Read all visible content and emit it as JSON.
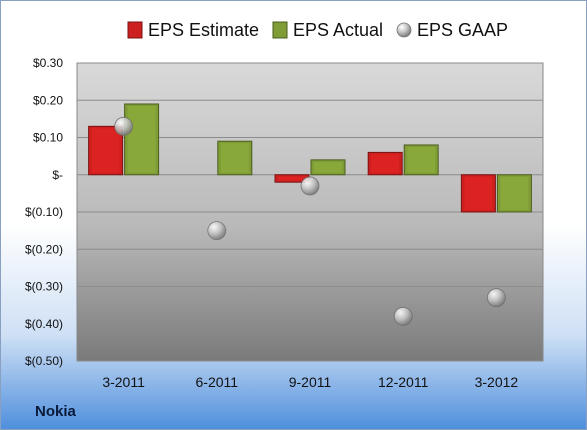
{
  "company": "Nokia",
  "chart_data": {
    "type": "bar",
    "categories": [
      "3-2011",
      "6-2011",
      "9-2011",
      "12-2011",
      "3-2012"
    ],
    "series": [
      {
        "name": "EPS Estimate",
        "kind": "bar",
        "color": "#cc1f1f",
        "values": [
          0.13,
          null,
          -0.02,
          0.06,
          -0.1
        ]
      },
      {
        "name": "EPS Actual",
        "kind": "bar",
        "color": "#7f9c36",
        "values": [
          0.19,
          0.09,
          0.04,
          0.08,
          -0.1
        ]
      },
      {
        "name": "EPS GAAP",
        "kind": "marker",
        "color": "#a9a9a9",
        "values": [
          0.13,
          -0.15,
          -0.03,
          -0.38,
          -0.33
        ]
      }
    ],
    "yticks": [
      {
        "value": 0.3,
        "label": "$0.30"
      },
      {
        "value": 0.2,
        "label": "$0.20"
      },
      {
        "value": 0.1,
        "label": "$0.10"
      },
      {
        "value": 0.0,
        "label": "$-"
      },
      {
        "value": -0.1,
        "label": "$(0.10)"
      },
      {
        "value": -0.2,
        "label": "$(0.20)"
      },
      {
        "value": -0.3,
        "label": "$(0.30)"
      },
      {
        "value": -0.4,
        "label": "$(0.40)"
      },
      {
        "value": -0.5,
        "label": "$(0.50)"
      }
    ],
    "ylim": [
      -0.5,
      0.3
    ],
    "grid": true,
    "legend_position": "top"
  }
}
